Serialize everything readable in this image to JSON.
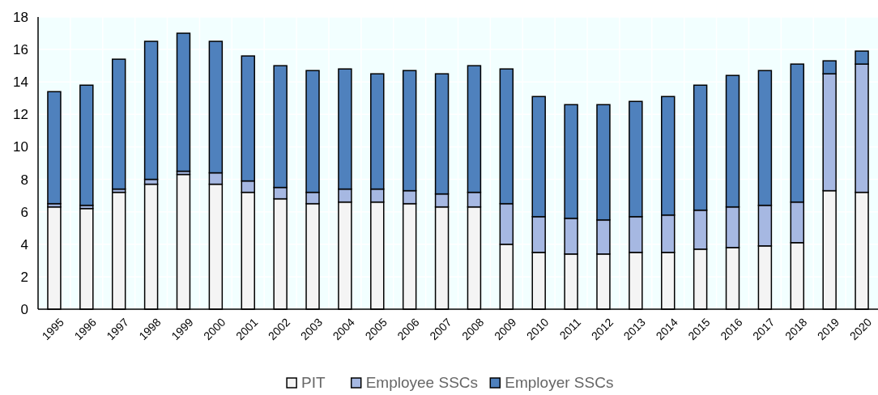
{
  "chart_data": {
    "type": "bar",
    "stacked": true,
    "categories": [
      "1995",
      "1996",
      "1997",
      "1998",
      "1999",
      "2000",
      "2001",
      "2002",
      "2003",
      "2004",
      "2005",
      "2006",
      "2007",
      "2008",
      "2009",
      "2010",
      "2011",
      "2012",
      "2013",
      "2014",
      "2015",
      "2016",
      "2017",
      "2018",
      "2019",
      "2020"
    ],
    "series": [
      {
        "name": "PIT",
        "color": "#f4f4f4",
        "values": [
          6.3,
          6.2,
          7.2,
          7.7,
          8.3,
          7.7,
          7.2,
          6.8,
          6.5,
          6.6,
          6.6,
          6.5,
          6.3,
          6.3,
          4.0,
          3.5,
          3.4,
          3.4,
          3.5,
          3.5,
          3.7,
          3.8,
          3.9,
          4.1,
          7.3,
          7.2
        ]
      },
      {
        "name": "Employee SSCs",
        "color": "#a6b8e2",
        "values": [
          0.2,
          0.2,
          0.2,
          0.3,
          0.2,
          0.7,
          0.7,
          0.7,
          0.7,
          0.8,
          0.8,
          0.8,
          0.8,
          0.9,
          2.5,
          2.2,
          2.2,
          2.1,
          2.2,
          2.3,
          2.4,
          2.5,
          2.5,
          2.5,
          7.2,
          7.9
        ]
      },
      {
        "name": "Employer SSCs",
        "color": "#4f81bd",
        "values": [
          6.9,
          7.4,
          8.0,
          8.5,
          8.5,
          8.1,
          7.7,
          7.5,
          7.5,
          7.4,
          7.1,
          7.4,
          7.4,
          7.8,
          8.3,
          7.4,
          7.0,
          7.1,
          7.1,
          7.3,
          7.7,
          8.1,
          8.3,
          8.5,
          0.8,
          0.8
        ]
      }
    ],
    "ylim": [
      0,
      18
    ],
    "yticks": [
      0,
      2,
      4,
      6,
      8,
      10,
      12,
      14,
      16,
      18
    ],
    "grid": true,
    "legend": "bottom"
  }
}
